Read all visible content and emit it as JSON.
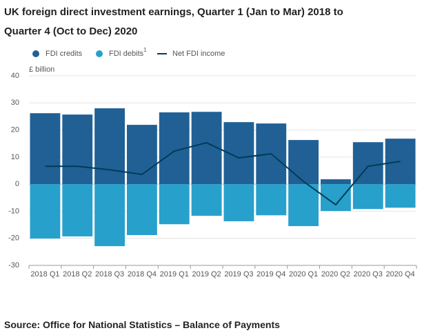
{
  "chart_data": {
    "type": "bar",
    "title": "UK foreign direct investment earnings, Quarter 1 (Jan to Mar) 2018 to Quarter 4 (Oct to Dec) 2020",
    "y_label": "£ billion",
    "categories": [
      "2018 Q1",
      "2018 Q2",
      "2018 Q3",
      "2018 Q4",
      "2019 Q1",
      "2019 Q2",
      "2019 Q3",
      "2019 Q4",
      "2020 Q1",
      "2020 Q2",
      "2020 Q3",
      "2020 Q4"
    ],
    "series": [
      {
        "name": "FDI credits",
        "color": "#206095",
        "type": "bar",
        "values": [
          26.2,
          25.7,
          28.0,
          21.9,
          26.5,
          26.7,
          22.9,
          22.4,
          16.3,
          1.8,
          15.5,
          16.8
        ]
      },
      {
        "name": "FDI debits",
        "name_superscript": "1",
        "color": "#27a0cc",
        "type": "bar",
        "values": [
          -20.1,
          -19.3,
          -22.9,
          -18.8,
          -14.8,
          -11.7,
          -13.7,
          -11.5,
          -15.5,
          -9.9,
          -9.2,
          -8.7
        ]
      },
      {
        "name": "Net FDI income",
        "color": "#003c57",
        "type": "line",
        "values": [
          6.6,
          6.6,
          5.3,
          3.6,
          12.2,
          15.3,
          9.7,
          11.2,
          1.0,
          -7.6,
          6.6,
          8.4
        ]
      }
    ],
    "ylim": [
      -30,
      40
    ],
    "yticks": [
      -30,
      -20,
      -10,
      0,
      10,
      20,
      30,
      40
    ],
    "grid": true,
    "source": "Source: Office for National Statistics – Balance of Payments"
  }
}
